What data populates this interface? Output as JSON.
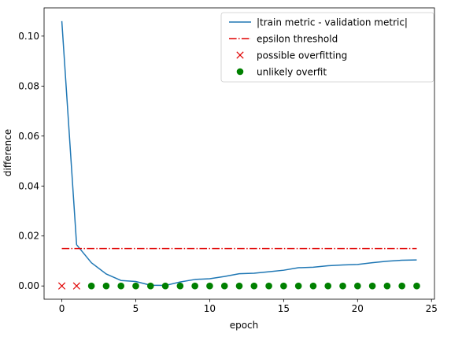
{
  "chart_data": {
    "type": "line",
    "title": "",
    "xlabel": "epoch",
    "ylabel": "difference",
    "xlim": [
      -1.2,
      25.2
    ],
    "ylim": [
      -0.0053,
      0.1113
    ],
    "xticks": [
      0,
      5,
      10,
      15,
      20,
      25
    ],
    "xtick_labels": [
      "0",
      "5",
      "10",
      "15",
      "20",
      "25"
    ],
    "yticks": [
      0.0,
      0.02,
      0.04,
      0.06,
      0.08,
      0.1
    ],
    "ytick_labels": [
      "0.00",
      "0.02",
      "0.04",
      "0.06",
      "0.08",
      "0.10"
    ],
    "grid": false,
    "legend_position": "top-right",
    "series": [
      {
        "name": "|train metric - validation metric|",
        "type": "line",
        "color": "#1f77b4",
        "x": [
          0,
          1,
          2,
          3,
          4,
          5,
          6,
          7,
          8,
          9,
          10,
          11,
          12,
          13,
          14,
          15,
          16,
          17,
          18,
          19,
          20,
          21,
          22,
          23,
          24
        ],
        "y": [
          0.106,
          0.0165,
          0.0093,
          0.0048,
          0.0022,
          0.0018,
          0.0003,
          0.0002,
          0.0016,
          0.0026,
          0.0029,
          0.0038,
          0.0049,
          0.0051,
          0.0057,
          0.0063,
          0.0073,
          0.0075,
          0.0081,
          0.0084,
          0.0086,
          0.0093,
          0.0099,
          0.0103,
          0.0104
        ]
      },
      {
        "name": "epsilon threshold",
        "type": "line",
        "style": "dashdot",
        "color": "#e00000",
        "x": [
          0,
          24
        ],
        "y": [
          0.015,
          0.015
        ]
      },
      {
        "name": "possible overfitting",
        "type": "scatter",
        "marker": "x",
        "color": "#e00000",
        "x": [
          0,
          1
        ],
        "y": [
          0.0,
          0.0
        ]
      },
      {
        "name": "unlikely overfit",
        "type": "scatter",
        "marker": "circle",
        "color": "#008000",
        "x": [
          2,
          3,
          4,
          5,
          6,
          7,
          8,
          9,
          10,
          11,
          12,
          13,
          14,
          15,
          16,
          17,
          18,
          19,
          20,
          21,
          22,
          23,
          24
        ],
        "y": [
          0.0,
          0.0,
          0.0,
          0.0,
          0.0,
          0.0,
          0.0,
          0.0,
          0.0,
          0.0,
          0.0,
          0.0,
          0.0,
          0.0,
          0.0,
          0.0,
          0.0,
          0.0,
          0.0,
          0.0,
          0.0,
          0.0,
          0.0
        ]
      }
    ]
  }
}
